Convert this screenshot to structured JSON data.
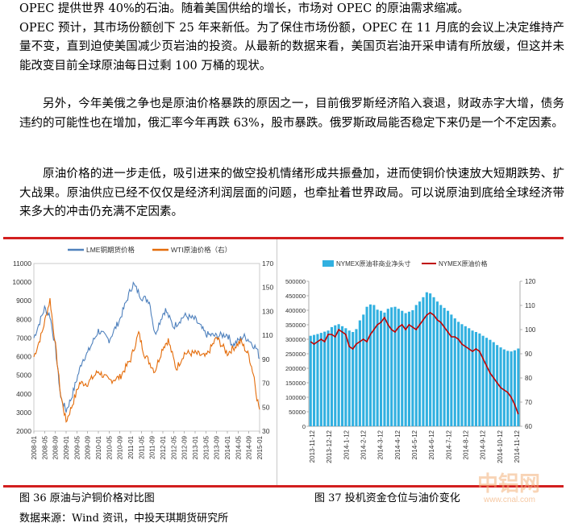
{
  "paragraphs": {
    "p0_line0": "OPEC 提供世界 40%的石油。随着美国供给的增长，市场对 OPEC 的原油需求缩减。",
    "p0_rest": "OPEC 预计，其市场份额创下 25 年来新低。为了保住市场份额，OPEC 在 11 月底的会议上决定维持产量不变，直到迫使美国减少页岩油的投资。从最新的数据来看，美国页岩油开采申请有所放缓，但这并未能改变目前全球原油每日过剩 100 万桶的现状。",
    "p1": "另外，今年美俄之争也是原油价格暴跌的原因之一，目前俄罗斯经济陷入衰退，财政赤字大增，债务违约的可能性也在增加，俄汇率今年再跌 63%，股市暴跌。俄罗斯政局能否稳定下来仍是一个不定因素。",
    "p2": "原油价格的进一步走低，吸引进来的做空投机情绪形成共振叠加，进而使铜价快速放大短期跌势、扩大战果。原油供应已经不仅仅是经济利润层面的问题，也牵扯着世界政局。可以说原油到底给全球经济带来多大的冲击仍充满不定因素。"
  },
  "captions": {
    "fig36": "图 36  原油与沪铜价格对比图",
    "fig37": "图 37  投机资金仓位与油价变化",
    "source": "数据来源：Wind 资讯，中投天琪期货研究所"
  },
  "watermark": {
    "text": "中铝网",
    "url": "www.cnal.com"
  },
  "colors": {
    "accent_red": "#d21f1f",
    "copper_blue": "#4f81bd",
    "oil_orange": "#e46c0a",
    "bar_cyan": "#31b0e0",
    "price_red": "#c00000"
  },
  "chart_data": [
    {
      "type": "line",
      "series": [
        {
          "name": "LME铜期货价格",
          "axis": "left",
          "x": [
            "2008-01",
            "2008-05",
            "2008-07",
            "2008-09",
            "2008-11",
            "2009-01",
            "2009-03",
            "2009-05",
            "2009-07",
            "2009-09",
            "2010-01",
            "2010-05",
            "2010-09",
            "2011-01",
            "2011-02",
            "2011-05",
            "2011-08",
            "2011-10",
            "2012-01",
            "2012-02",
            "2012-05",
            "2012-09",
            "2013-01",
            "2013-05",
            "2013-09",
            "2014-01",
            "2014-03",
            "2014-07",
            "2014-09",
            "2014-12",
            "2015-01"
          ],
          "values": [
            7000,
            8600,
            8200,
            6500,
            3800,
            3100,
            3800,
            4800,
            5800,
            6200,
            7400,
            6900,
            8000,
            9600,
            9900,
            9200,
            9000,
            7200,
            8300,
            8500,
            7600,
            8200,
            8000,
            7200,
            7100,
            7200,
            6600,
            7100,
            6900,
            6400,
            5900
          ]
        },
        {
          "name": "WTI原油价格（右）",
          "axis": "right",
          "x": [
            "2008-01",
            "2008-04",
            "2008-07",
            "2008-09",
            "2008-11",
            "2009-01",
            "2009-03",
            "2009-06",
            "2009-09",
            "2010-01",
            "2010-05",
            "2010-09",
            "2011-01",
            "2011-04",
            "2011-06",
            "2011-10",
            "2012-01",
            "2012-03",
            "2012-06",
            "2012-09",
            "2013-01",
            "2013-05",
            "2013-09",
            "2014-01",
            "2014-06",
            "2014-09",
            "2014-11",
            "2014-12",
            "2015-01"
          ],
          "values": [
            92,
            112,
            140,
            102,
            60,
            38,
            50,
            70,
            70,
            80,
            72,
            75,
            90,
            112,
            95,
            80,
            100,
            106,
            82,
            95,
            95,
            92,
            108,
            95,
            105,
            93,
            75,
            58,
            48
          ]
        }
      ],
      "x_tick_labels": [
        "2008-01",
        "2008-05",
        "2008-09",
        "2009-01",
        "2009-05",
        "2009-09",
        "2010-01",
        "2010-05",
        "2010-09",
        "2011-01",
        "2011-05",
        "2011-09",
        "2012-01",
        "2012-05",
        "2012-09",
        "2013-01",
        "2013-05",
        "2013-09",
        "2014-01",
        "2014-05",
        "2014-09",
        "2015-01"
      ],
      "ylim_left": [
        2000,
        11000
      ],
      "y_ticks_left": [
        "2000",
        "3000",
        "4000",
        "5000",
        "6000",
        "7000",
        "8000",
        "9000",
        "10000",
        "11000"
      ],
      "ylim_right": [
        30,
        170
      ],
      "y_ticks_right": [
        "30",
        "50",
        "70",
        "90",
        "110",
        "130",
        "150",
        "170"
      ],
      "legend": "top"
    },
    {
      "type": "bar",
      "series": [
        {
          "name": "NYMEX原油非商业净头寸",
          "axis": "left",
          "kind": "bar",
          "values": [
            312000,
            315000,
            318000,
            322000,
            326000,
            330000,
            342000,
            348000,
            352000,
            345000,
            338000,
            330000,
            325000,
            335000,
            365000,
            385000,
            412000,
            420000,
            418000,
            402000,
            398000,
            392000,
            405000,
            410000,
            412000,
            405000,
            398000,
            390000,
            395000,
            400000,
            418000,
            430000,
            445000,
            462000,
            458000,
            445000,
            430000,
            418000,
            408000,
            398000,
            385000,
            372000,
            360000,
            352000,
            345000,
            338000,
            330000,
            325000,
            320000,
            312000,
            305000,
            298000,
            290000,
            280000,
            272000,
            265000,
            260000,
            258000,
            262000,
            268000
          ]
        },
        {
          "name": "NYMEX原油价格",
          "axis": "right",
          "kind": "line",
          "values": [
            95,
            94,
            95,
            96,
            95,
            98,
            98,
            97,
            100,
            99,
            98,
            93,
            92,
            94,
            95,
            96,
            95,
            98,
            100,
            102,
            103,
            105,
            102,
            100,
            99,
            101,
            102,
            100,
            102,
            101,
            100,
            102,
            104,
            106,
            107,
            106,
            104,
            103,
            101,
            99,
            97,
            97,
            96,
            94,
            93,
            92,
            91,
            92,
            91,
            88,
            85,
            82,
            80,
            78,
            76,
            75,
            74,
            72,
            69,
            65
          ]
        }
      ],
      "x_tick_labels": [
        "2013-11-12",
        "2013-12-12",
        "2014-1-12",
        "2014-2-12",
        "2014-3-12",
        "2014-4-12",
        "2014-5-12",
        "2014-6-12",
        "2014-7-12",
        "2014-8-12",
        "2014-9-12",
        "2014-10-12",
        "2014-11-12"
      ],
      "ylim_left": [
        0,
        500000
      ],
      "y_ticks_left": [
        "0",
        "50000",
        "100000",
        "150000",
        "200000",
        "250000",
        "300000",
        "350000",
        "400000",
        "450000",
        "500000"
      ],
      "ylim_right": [
        60,
        120
      ],
      "y_ticks_right": [
        "60",
        "70",
        "80",
        "90",
        "100",
        "110",
        "120"
      ],
      "legend": "top"
    }
  ]
}
